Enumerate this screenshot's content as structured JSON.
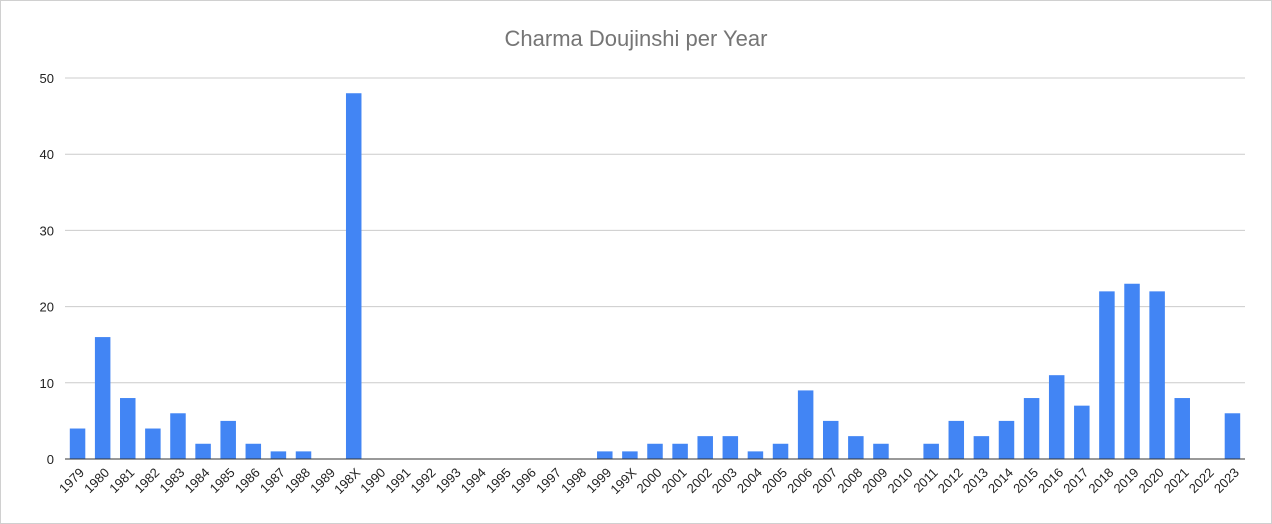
{
  "chart_data": {
    "type": "bar",
    "title": "Charma Doujinshi per Year",
    "xlabel": "",
    "ylabel": "",
    "ylim": [
      0,
      50
    ],
    "yticks": [
      0,
      10,
      20,
      30,
      40,
      50
    ],
    "grid": true,
    "legend": "none",
    "bar_color": "#4285f4",
    "categories": [
      "1979",
      "1980",
      "1981",
      "1982",
      "1983",
      "1984",
      "1985",
      "1986",
      "1987",
      "1988",
      "1989",
      "198X",
      "1990",
      "1991",
      "1992",
      "1993",
      "1994",
      "1995",
      "1996",
      "1997",
      "1998",
      "1999",
      "199X",
      "2000",
      "2001",
      "2002",
      "2003",
      "2004",
      "2005",
      "2006",
      "2007",
      "2008",
      "2009",
      "2010",
      "2011",
      "2012",
      "2013",
      "2014",
      "2015",
      "2016",
      "2017",
      "2018",
      "2019",
      "2020",
      "2021",
      "2022",
      "2023"
    ],
    "values": [
      4,
      16,
      8,
      4,
      6,
      2,
      5,
      2,
      1,
      1,
      0,
      48,
      0,
      0,
      0,
      0,
      0,
      0,
      0,
      0,
      0,
      1,
      1,
      2,
      2,
      3,
      3,
      1,
      2,
      9,
      5,
      3,
      2,
      0,
      2,
      5,
      3,
      5,
      8,
      11,
      7,
      22,
      23,
      22,
      8,
      0,
      6
    ]
  }
}
